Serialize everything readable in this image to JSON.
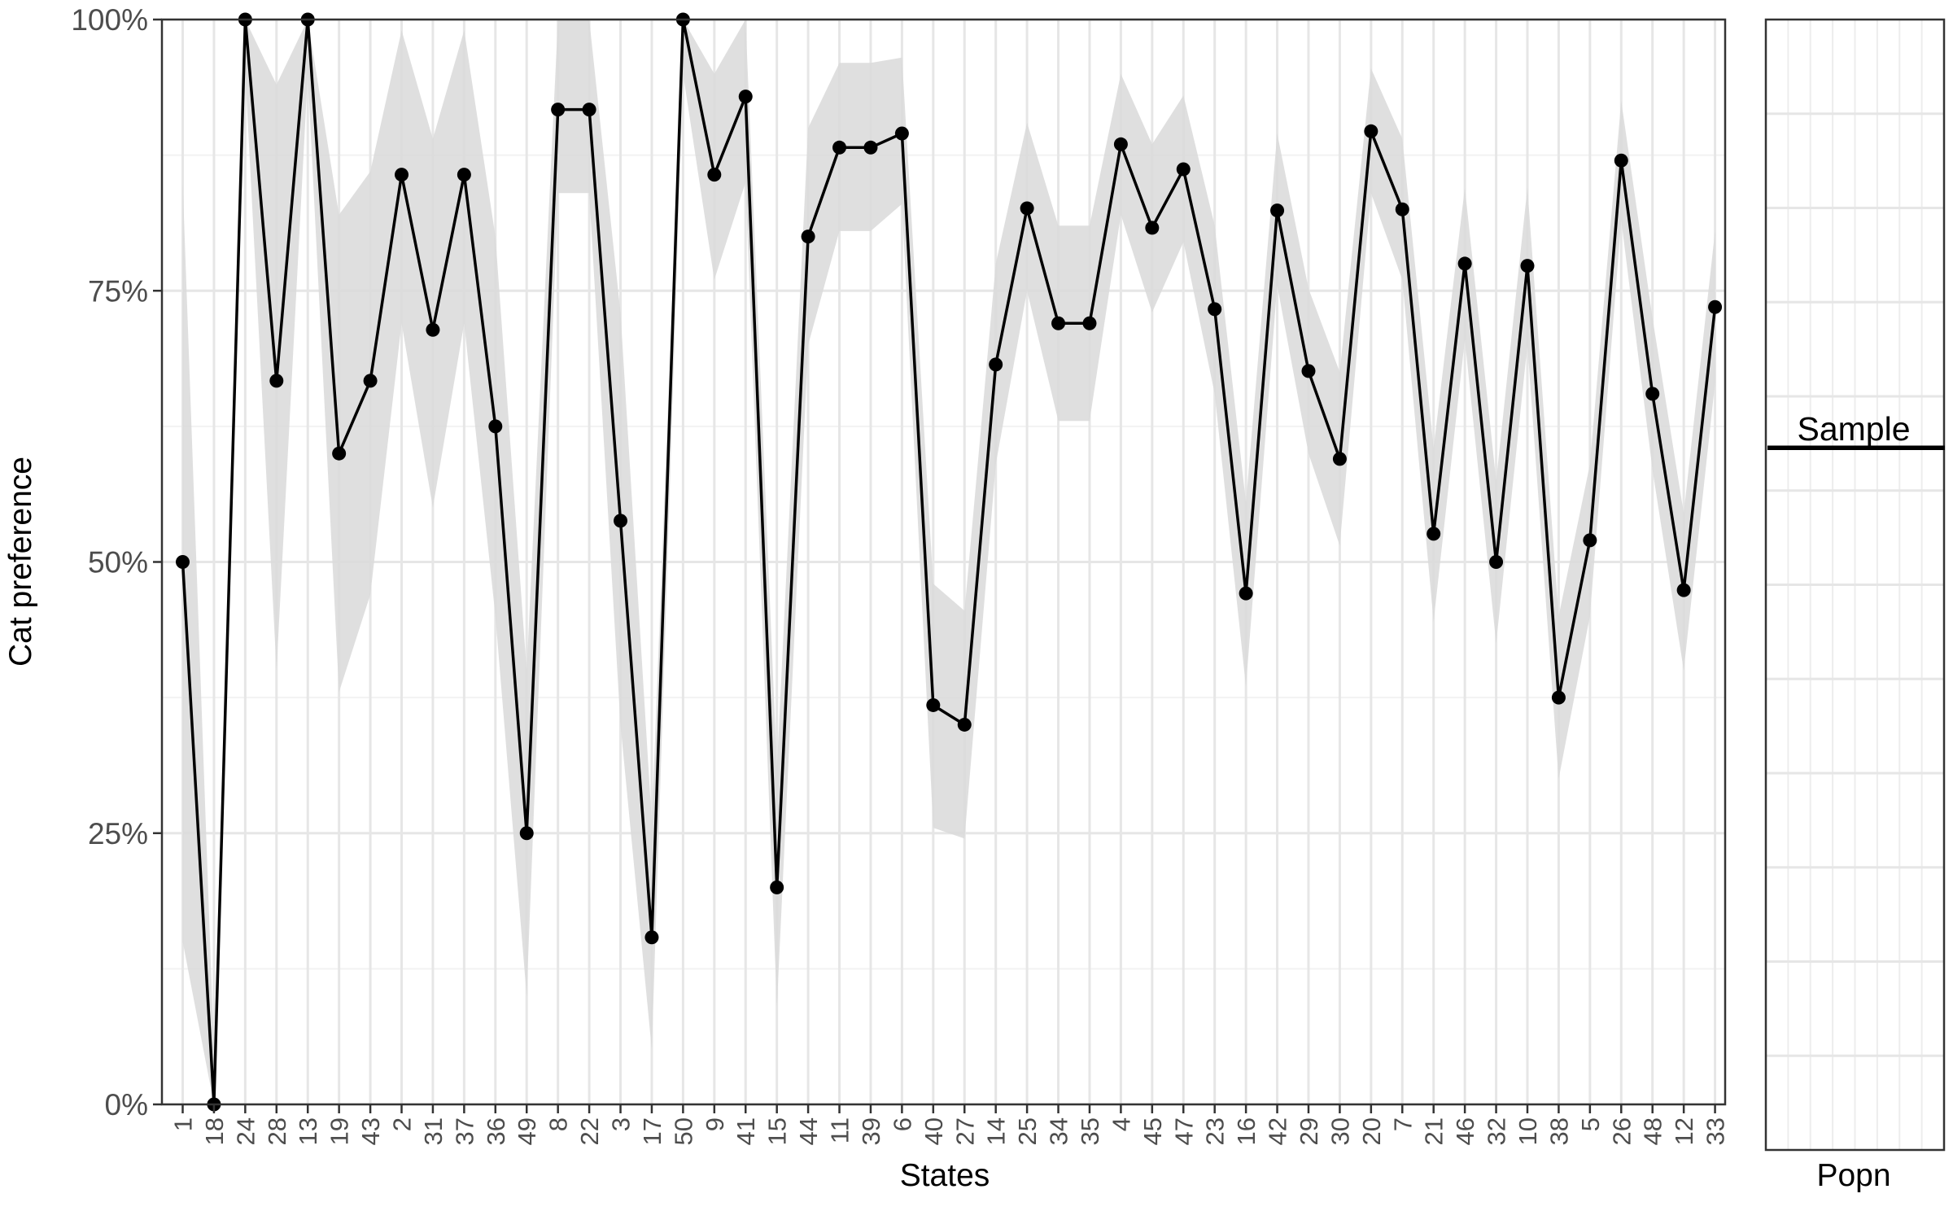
{
  "chart_data": {
    "type": "line",
    "ylabel": "Cat preference",
    "xlabel": "States",
    "ylim": [
      0,
      1
    ],
    "y_tick_values": [
      0,
      0.25,
      0.5,
      0.75,
      1.0
    ],
    "y_tick_labels": [
      "0%",
      "25%",
      "50%",
      "75%",
      "100%"
    ],
    "grid": true,
    "categories": [
      "1",
      "18",
      "24",
      "28",
      "13",
      "19",
      "43",
      "2",
      "31",
      "37",
      "36",
      "49",
      "8",
      "22",
      "3",
      "17",
      "50",
      "9",
      "41",
      "15",
      "44",
      "11",
      "39",
      "6",
      "40",
      "27",
      "14",
      "25",
      "34",
      "35",
      "4",
      "45",
      "47",
      "23",
      "16",
      "42",
      "29",
      "30",
      "20",
      "7",
      "21",
      "46",
      "32",
      "10",
      "38",
      "5",
      "26",
      "48",
      "12",
      "33"
    ],
    "values": [
      0.5,
      0.0,
      1.0,
      0.667,
      1.0,
      0.6,
      0.667,
      0.857,
      0.714,
      0.857,
      0.625,
      0.25,
      0.917,
      0.917,
      0.538,
      0.154,
      1.0,
      0.857,
      0.929,
      0.2,
      0.8,
      0.882,
      0.882,
      0.895,
      0.368,
      0.35,
      0.682,
      0.826,
      0.72,
      0.72,
      0.885,
      0.808,
      0.862,
      0.733,
      0.471,
      0.824,
      0.676,
      0.595,
      0.897,
      0.825,
      0.526,
      0.775,
      0.5,
      0.773,
      0.375,
      0.52,
      0.87,
      0.655,
      0.474,
      0.735
    ],
    "band_lower": [
      0.15,
      0.0,
      0.95,
      0.4,
      0.95,
      0.38,
      0.47,
      0.72,
      0.55,
      0.72,
      0.45,
      0.1,
      0.84,
      0.84,
      0.35,
      0.05,
      0.95,
      0.76,
      0.85,
      0.09,
      0.7,
      0.805,
      0.805,
      0.83,
      0.255,
      0.245,
      0.59,
      0.75,
      0.63,
      0.63,
      0.82,
      0.73,
      0.795,
      0.655,
      0.385,
      0.755,
      0.6,
      0.515,
      0.84,
      0.76,
      0.445,
      0.705,
      0.425,
      0.7,
      0.3,
      0.45,
      0.815,
      0.585,
      0.4,
      0.665
    ],
    "band_upper": [
      0.85,
      0.05,
      1.0,
      0.94,
      1.0,
      0.82,
      0.86,
      0.99,
      0.89,
      0.99,
      0.8,
      0.4,
      1.0,
      1.0,
      0.73,
      0.26,
      1.0,
      0.95,
      1.0,
      0.31,
      0.9,
      0.96,
      0.96,
      0.965,
      0.48,
      0.455,
      0.775,
      0.905,
      0.81,
      0.81,
      0.95,
      0.885,
      0.93,
      0.81,
      0.555,
      0.895,
      0.752,
      0.675,
      0.955,
      0.89,
      0.605,
      0.845,
      0.575,
      0.845,
      0.45,
      0.59,
      0.925,
      0.725,
      0.545,
      0.805
    ],
    "side_panel": {
      "xlabel": "Popn",
      "series_label": "Sample",
      "value": 0.606
    }
  }
}
